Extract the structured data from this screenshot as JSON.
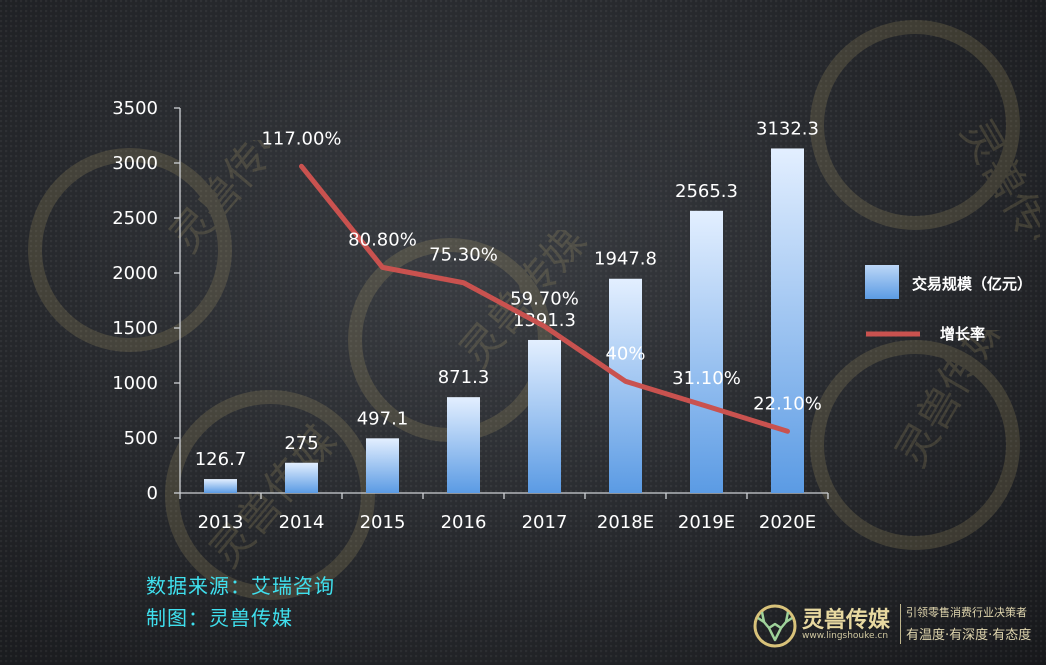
{
  "chart_data": {
    "type": "bar",
    "categories": [
      "2013",
      "2014",
      "2015",
      "2016",
      "2017",
      "2018E",
      "2019E",
      "2020E"
    ],
    "ylim": [
      0,
      3500
    ],
    "yticks": [
      0,
      500,
      1000,
      1500,
      2000,
      2500,
      3000,
      3500
    ],
    "series": [
      {
        "name": "交易规模（亿元）",
        "type": "bar",
        "values": [
          126.7,
          275,
          497.1,
          871.3,
          1391.3,
          1947.8,
          2565.3,
          3132.3
        ],
        "labels": [
          "126.7",
          "275",
          "497.1",
          "871.3",
          "1391.3",
          "1947.8",
          "2565.3",
          "3132.3"
        ],
        "color": "#7fb2ea"
      },
      {
        "name": "增长率",
        "type": "line",
        "values": [
          null,
          117.0,
          80.8,
          75.3,
          59.7,
          40,
          31.1,
          22.1
        ],
        "labels": [
          "",
          "117.00%",
          "80.80%",
          "75.30%",
          "59.70%",
          "40%",
          "31.10%",
          "22.10%"
        ],
        "color": "#c9524f"
      }
    ],
    "legend": {
      "placement": "right",
      "items": [
        {
          "label": "交易规模（亿元）",
          "type": "box"
        },
        {
          "label": "增长率",
          "type": "line"
        }
      ]
    }
  },
  "source": {
    "line1": "数据来源：艾瑞咨询",
    "line2": "制图：灵兽传媒"
  },
  "brand": {
    "name": "灵兽传媒",
    "url": "www.lingshouke.cn",
    "slogan1": "引领零售消费行业决策者",
    "slogan2": "有温度·有深度·有态度"
  },
  "watermark": {
    "text": "灵兽传媒",
    "url": "lingshouke.cn"
  }
}
